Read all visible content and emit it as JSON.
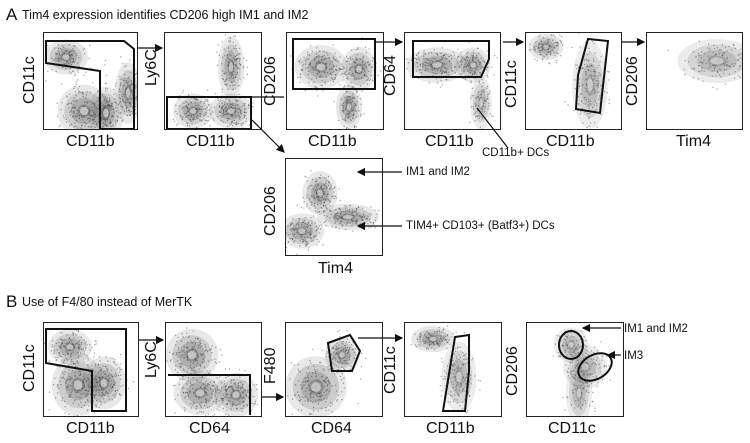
{
  "sectionA": {
    "letter": "A",
    "title": "Tim4 expression identifies CD206 high IM1 and IM2",
    "plots": [
      {
        "x": "CD11b",
        "y": "CD11c"
      },
      {
        "x": "CD11b",
        "y": "Ly6C"
      },
      {
        "x": "CD11b",
        "y": "CD206"
      },
      {
        "x": "CD11b",
        "y": "CD64"
      },
      {
        "x": "CD11b",
        "y": "CD11c"
      },
      {
        "x": "Tim4",
        "y": "CD206"
      }
    ],
    "subplot": {
      "x": "Tim4",
      "y": "CD206"
    },
    "annotations": {
      "cd11b_dcs": "CD11b+ DCs",
      "im1_im2": "IM1 and IM2",
      "tim4_dcs": "TIM4+ CD103+ (Batf3+) DCs"
    }
  },
  "sectionB": {
    "letter": "B",
    "title": "Use of F4/80 instead of MerTK",
    "plots": [
      {
        "x": "CD11b",
        "y": "CD11c"
      },
      {
        "x": "CD64",
        "y": "Ly6C"
      },
      {
        "x": "CD64",
        "y": "F480"
      },
      {
        "x": "CD11b",
        "y": "CD11c"
      },
      {
        "x": "CD11c",
        "y": "CD206"
      }
    ],
    "annotations": {
      "im1_im2": "IM1 and IM2",
      "im3": "IM3"
    }
  }
}
